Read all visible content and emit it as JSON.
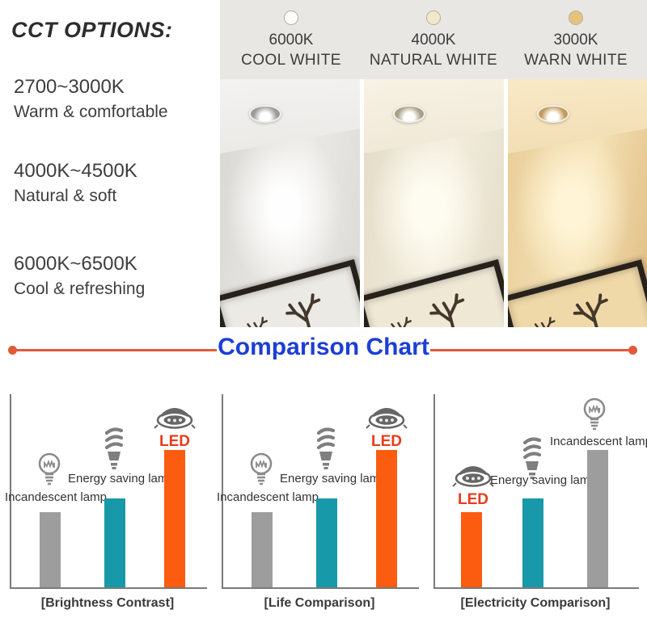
{
  "left_panel": {
    "title": "CCT OPTIONS:",
    "options": [
      {
        "range": "2700~3000K",
        "desc": "Warm & comfortable"
      },
      {
        "range": "4000K~4500K",
        "desc": "Natural & soft"
      },
      {
        "range": "6000K~6500K",
        "desc": "Cool & refreshing"
      }
    ]
  },
  "header": {
    "bg": "#e9e7e4",
    "columns": [
      {
        "kelvin": "6000K",
        "name": "COOL WHITE",
        "swatch": "#fdfdfd"
      },
      {
        "kelvin": "4000K",
        "name": "NATURAL WHITE",
        "swatch": "#f3e8ca"
      },
      {
        "kelvin": "3000K",
        "name": "WARN WHITE",
        "swatch": "#e8c17c"
      }
    ]
  },
  "photos": [
    {
      "label": "room lit with 6000K cool white downlight"
    },
    {
      "label": "room lit with 4000K natural white downlight"
    },
    {
      "label": "room lit with 3000K warm white downlight"
    }
  ],
  "divider": {
    "title": "Comparison Chart",
    "title_color": "#1d3ed6",
    "line_color": "#e2593a"
  },
  "colors": {
    "incandescent_bar": "#9d9d9d",
    "energy_saving_bar": "#1899a9",
    "led_bar": "#fb5c0f",
    "led_label": "#e73b1d",
    "axis": "#7a7a7a"
  },
  "chart_data": [
    {
      "type": "bar",
      "title": "[Brightness Contrast]",
      "note": "qualitative comparison, no numeric axis shown",
      "categories": [
        "Incandescent lamp",
        "Energy saving lamp",
        "LED"
      ],
      "values": [
        39,
        46,
        71
      ],
      "unit": "percent of plot height",
      "layout": "led-right",
      "items": [
        {
          "label": "Incandescent lamp",
          "icon": "incandescent-bulb-icon",
          "color": "#9d9d9d",
          "value_pct": 39
        },
        {
          "label": "Energy saving lamp",
          "icon": "cfl-bulb-icon",
          "color": "#1899a9",
          "value_pct": 46
        },
        {
          "label": "LED",
          "icon": "led-downlight-icon",
          "color": "#fb5c0f",
          "label_color": "#e73b1d",
          "value_pct": 71
        }
      ]
    },
    {
      "type": "bar",
      "title": "[Life Comparison]",
      "note": "qualitative comparison, no numeric axis shown",
      "categories": [
        "Incandescent lamp",
        "Energy saving lamp",
        "LED"
      ],
      "values": [
        39,
        46,
        71
      ],
      "unit": "percent of plot height",
      "layout": "led-right",
      "items": [
        {
          "label": "Incandescent lamp",
          "icon": "incandescent-bulb-icon",
          "color": "#9d9d9d",
          "value_pct": 39
        },
        {
          "label": "Energy saving lamp",
          "icon": "cfl-bulb-icon",
          "color": "#1899a9",
          "value_pct": 46
        },
        {
          "label": "LED",
          "icon": "led-downlight-icon",
          "color": "#fb5c0f",
          "label_color": "#e73b1d",
          "value_pct": 71
        }
      ]
    },
    {
      "type": "bar",
      "title": "[Electricity Comparison]",
      "note": "qualitative comparison, no numeric axis shown",
      "categories": [
        "LED",
        "Energy saving lamp",
        "Incandescent lamp"
      ],
      "values": [
        39,
        46,
        71
      ],
      "unit": "percent of plot height",
      "layout": "led-left",
      "items": [
        {
          "label": "LED",
          "icon": "led-downlight-icon",
          "color": "#fb5c0f",
          "label_color": "#e73b1d",
          "value_pct": 39
        },
        {
          "label": "Energy saving lamp",
          "icon": "cfl-bulb-icon",
          "color": "#1899a9",
          "value_pct": 46
        },
        {
          "label": "Incandescent lamp",
          "icon": "incandescent-bulb-icon",
          "color": "#9d9d9d",
          "value_pct": 71
        }
      ]
    }
  ]
}
